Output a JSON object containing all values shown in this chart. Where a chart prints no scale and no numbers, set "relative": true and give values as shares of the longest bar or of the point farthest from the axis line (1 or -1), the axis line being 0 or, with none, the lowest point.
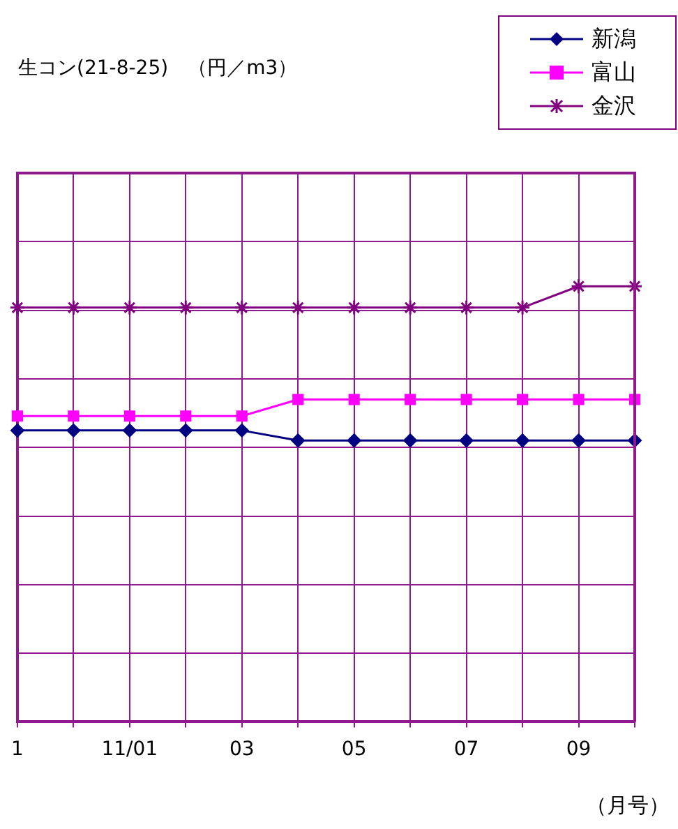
{
  "chart_data": {
    "type": "line",
    "title": "生コン(21-8-25)　（円／m3）",
    "xlabel": "（月号）",
    "relative": true,
    "grid": true,
    "legend": "top right",
    "categories": [
      "1",
      null,
      "11/01",
      null,
      "03",
      null,
      "05",
      null,
      "07",
      null,
      "09",
      null
    ],
    "series": [
      {
        "name": "新潟",
        "color": "#000080",
        "marker": "diamond",
        "values": [
          0.669,
          0.669,
          0.669,
          0.669,
          0.669,
          0.646,
          0.646,
          0.646,
          0.646,
          0.646,
          0.646,
          0.646
        ]
      },
      {
        "name": "富山",
        "color": "#ff00ff",
        "marker": "square",
        "values": [
          0.702,
          0.702,
          0.702,
          0.702,
          0.702,
          0.74,
          0.74,
          0.74,
          0.74,
          0.74,
          0.74,
          0.74
        ]
      },
      {
        "name": "金沢",
        "color": "#800080",
        "marker": "cross",
        "values": [
          0.951,
          0.951,
          0.951,
          0.951,
          0.951,
          0.951,
          0.951,
          0.951,
          0.951,
          0.951,
          1,
          1
        ]
      }
    ]
  }
}
